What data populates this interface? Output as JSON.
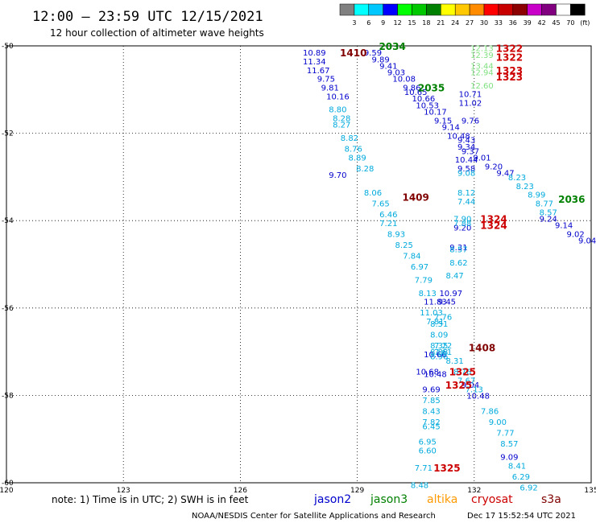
{
  "header": {
    "title": "12:00 — 23:59 UTC 12/15/2021",
    "subtitle": "12 hour collection of altimeter wave heights"
  },
  "legend": {
    "colors": [
      "#808080",
      "#00ffff",
      "#00c8ff",
      "#0000ff",
      "#00ff00",
      "#00c800",
      "#008000",
      "#ffff00",
      "#ffc800",
      "#ff8c00",
      "#ff0000",
      "#c80000",
      "#8b0000",
      "#c800c8",
      "#800080",
      "#ffffff",
      "#000000"
    ],
    "labels": [
      "3",
      "6",
      "9",
      "12",
      "15",
      "18",
      "21",
      "24",
      "27",
      "30",
      "33",
      "36",
      "39",
      "42",
      "45",
      "70",
      "(ft)"
    ]
  },
  "footer": {
    "note": "note:  1) Time is in UTC;  2) SWH is in feet",
    "credit": "NOAA/NESDIS Center for Satellite Applications and Research",
    "timestamp": "Dec 17 15:52:54 UTC 2021"
  },
  "satellites": [
    {
      "name": "jason2",
      "color": "#0000cc"
    },
    {
      "name": "jason3",
      "color": "#008000"
    },
    {
      "name": "altika",
      "color": "#ff9900"
    },
    {
      "name": "cryosat",
      "color": "#cc0000"
    },
    {
      "name": "s3a",
      "color": "#800000"
    }
  ],
  "chart_data": {
    "type": "scatter",
    "xlim": [
      120,
      135
    ],
    "ylim": [
      -60,
      -50
    ],
    "x_ticks": [
      {
        "v": 120,
        "label": "120"
      },
      {
        "v": 123,
        "label": "123"
      },
      {
        "v": 126,
        "label": "126"
      },
      {
        "v": 129,
        "label": "129"
      },
      {
        "v": 132,
        "label": "132"
      },
      {
        "v": 135,
        "label": "135"
      }
    ],
    "y_ticks": [
      {
        "v": -50,
        "label": "-50"
      },
      {
        "v": -52,
        "label": "-52"
      },
      {
        "v": -54,
        "label": "-54"
      },
      {
        "v": -56,
        "label": "-56"
      },
      {
        "v": -58,
        "label": "-58"
      },
      {
        "v": -60,
        "label": "-60"
      }
    ],
    "grid": true,
    "pass_labels": [
      {
        "x": 129.9,
        "y": -50.0,
        "text": "2034",
        "color": "#008000"
      },
      {
        "x": 128.9,
        "y": -50.15,
        "text": "1410",
        "color": "#800000"
      },
      {
        "x": 130.9,
        "y": -50.95,
        "text": "2035",
        "color": "#008000"
      },
      {
        "x": 130.5,
        "y": -53.45,
        "text": "1409",
        "color": "#800000"
      },
      {
        "x": 134.5,
        "y": -53.5,
        "text": "2036",
        "color": "#008000"
      },
      {
        "x": 132.9,
        "y": -50.05,
        "text": "1322",
        "color": "#cc0000"
      },
      {
        "x": 132.9,
        "y": -50.25,
        "text": "1322",
        "color": "#cc0000"
      },
      {
        "x": 132.9,
        "y": -50.55,
        "text": "1323",
        "color": "#cc0000"
      },
      {
        "x": 132.9,
        "y": -50.7,
        "text": "1323",
        "color": "#cc0000"
      },
      {
        "x": 132.5,
        "y": -53.95,
        "text": "1324",
        "color": "#cc0000"
      },
      {
        "x": 132.5,
        "y": -54.1,
        "text": "1324",
        "color": "#cc0000"
      },
      {
        "x": 132.2,
        "y": -56.9,
        "text": "1408",
        "color": "#800000"
      },
      {
        "x": 131.7,
        "y": -57.45,
        "text": "1325",
        "color": "#cc0000"
      },
      {
        "x": 131.6,
        "y": -57.75,
        "text": "1325",
        "color": "#cc0000"
      },
      {
        "x": 131.3,
        "y": -59.65,
        "text": "1325",
        "color": "#cc0000"
      }
    ],
    "series": [
      {
        "name": "jason2",
        "color": "#0000cc",
        "points": [
          {
            "x": 127.9,
            "y": -50.15,
            "v": "10.89"
          },
          {
            "x": 127.9,
            "y": -50.35,
            "v": "11.34"
          },
          {
            "x": 128.0,
            "y": -50.55,
            "v": "11.67"
          },
          {
            "x": 128.2,
            "y": -50.75,
            "v": "9.75"
          },
          {
            "x": 128.3,
            "y": -50.95,
            "v": "9.81"
          },
          {
            "x": 128.5,
            "y": -51.15,
            "v": "10.16"
          },
          {
            "x": 129.4,
            "y": -50.15,
            "v": "9.59"
          },
          {
            "x": 129.6,
            "y": -50.3,
            "v": "9.89"
          },
          {
            "x": 129.8,
            "y": -50.45,
            "v": "9.41"
          },
          {
            "x": 130.0,
            "y": -50.6,
            "v": "9.03"
          },
          {
            "x": 130.2,
            "y": -50.75,
            "v": "10.08"
          },
          {
            "x": 130.4,
            "y": -50.95,
            "v": "9.86"
          },
          {
            "x": 130.5,
            "y": -51.05,
            "v": "10.65"
          },
          {
            "x": 130.7,
            "y": -51.2,
            "v": "10.66"
          },
          {
            "x": 130.8,
            "y": -51.35,
            "v": "10.53"
          },
          {
            "x": 131.0,
            "y": -51.5,
            "v": "10.17"
          },
          {
            "x": 131.2,
            "y": -51.7,
            "v": "9.15"
          },
          {
            "x": 131.4,
            "y": -51.85,
            "v": "9.14"
          },
          {
            "x": 131.6,
            "y": -52.05,
            "v": "10.48"
          },
          {
            "x": 131.8,
            "y": -52.15,
            "v": "9.43"
          },
          {
            "x": 131.8,
            "y": -52.3,
            "v": "9.34"
          },
          {
            "x": 131.9,
            "y": -52.4,
            "v": "9.37"
          },
          {
            "x": 132.2,
            "y": -52.55,
            "v": "9.01"
          },
          {
            "x": 131.8,
            "y": -52.6,
            "v": "10.44"
          },
          {
            "x": 131.8,
            "y": -52.8,
            "v": "9.58"
          },
          {
            "x": 132.5,
            "y": -52.75,
            "v": "9.20"
          },
          {
            "x": 132.8,
            "y": -52.9,
            "v": "9.47"
          },
          {
            "x": 133.9,
            "y": -53.95,
            "v": "9.24"
          },
          {
            "x": 134.3,
            "y": -54.1,
            "v": "9.14"
          },
          {
            "x": 134.6,
            "y": -54.3,
            "v": "9.02"
          },
          {
            "x": 134.9,
            "y": -54.45,
            "v": "9.04"
          },
          {
            "x": 131.9,
            "y": -51.1,
            "v": "10.71"
          },
          {
            "x": 131.9,
            "y": -51.3,
            "v": "11.02"
          },
          {
            "x": 131.9,
            "y": -51.7,
            "v": "9.76"
          },
          {
            "x": 128.5,
            "y": -52.95,
            "v": "9.70"
          },
          {
            "x": 131.7,
            "y": -54.15,
            "v": "9.20"
          },
          {
            "x": 131.6,
            "y": -54.6,
            "v": "9.31"
          },
          {
            "x": 131.4,
            "y": -55.65,
            "v": "10.97"
          },
          {
            "x": 131.0,
            "y": -55.85,
            "v": "11.83"
          },
          {
            "x": 131.3,
            "y": -55.85,
            "v": "9.45"
          },
          {
            "x": 131.0,
            "y": -57.05,
            "v": "10.66"
          },
          {
            "x": 131.9,
            "y": -57.75,
            "v": "9.04"
          },
          {
            "x": 132.1,
            "y": -58.0,
            "v": "10.48"
          },
          {
            "x": 131.0,
            "y": -57.5,
            "v": "10.48"
          },
          {
            "x": 130.9,
            "y": -57.85,
            "v": "9.69"
          },
          {
            "x": 132.9,
            "y": -59.4,
            "v": "9.09"
          },
          {
            "x": 130.8,
            "y": -57.45,
            "v": "10.68"
          }
        ]
      },
      {
        "name": "jason3",
        "color": "#80e080",
        "points": [
          {
            "x": 132.2,
            "y": -50.05,
            "v": "12.13"
          },
          {
            "x": 132.2,
            "y": -50.2,
            "v": "12.39"
          },
          {
            "x": 132.2,
            "y": -50.45,
            "v": "13.44"
          },
          {
            "x": 132.2,
            "y": -50.6,
            "v": "12.94"
          },
          {
            "x": 132.2,
            "y": -50.9,
            "v": "12.60"
          }
        ]
      },
      {
        "name": "s3a",
        "color": "#00aadd",
        "points": [
          {
            "x": 128.5,
            "y": -51.45,
            "v": "8.80"
          },
          {
            "x": 128.6,
            "y": -51.65,
            "v": "8.28"
          },
          {
            "x": 128.6,
            "y": -51.8,
            "v": "8.27"
          },
          {
            "x": 128.8,
            "y": -52.1,
            "v": "8.82"
          },
          {
            "x": 128.9,
            "y": -52.35,
            "v": "8.76"
          },
          {
            "x": 129.0,
            "y": -52.55,
            "v": "8.89"
          },
          {
            "x": 129.2,
            "y": -52.8,
            "v": "8.28"
          },
          {
            "x": 129.4,
            "y": -53.35,
            "v": "8.06"
          },
          {
            "x": 129.6,
            "y": -53.6,
            "v": "7.65"
          },
          {
            "x": 129.8,
            "y": -53.85,
            "v": "6.46"
          },
          {
            "x": 129.8,
            "y": -54.05,
            "v": "7.21"
          },
          {
            "x": 130.0,
            "y": -54.3,
            "v": "8.93"
          },
          {
            "x": 130.2,
            "y": -54.55,
            "v": "8.25"
          },
          {
            "x": 130.4,
            "y": -54.8,
            "v": "7.84"
          },
          {
            "x": 130.6,
            "y": -55.05,
            "v": "6.97"
          },
          {
            "x": 130.7,
            "y": -55.35,
            "v": "7.79"
          },
          {
            "x": 130.8,
            "y": -55.65,
            "v": "8.13"
          },
          {
            "x": 130.9,
            "y": -56.1,
            "v": "11.03"
          },
          {
            "x": 131.0,
            "y": -56.3,
            "v": "7.81"
          },
          {
            "x": 131.2,
            "y": -56.2,
            "v": "7.76"
          },
          {
            "x": 131.1,
            "y": -56.35,
            "v": "8.51"
          },
          {
            "x": 131.1,
            "y": -56.6,
            "v": "8.09"
          },
          {
            "x": 131.1,
            "y": -56.85,
            "v": "8.35"
          },
          {
            "x": 131.2,
            "y": -56.85,
            "v": "7.22"
          },
          {
            "x": 131.1,
            "y": -57.0,
            "v": "8.88"
          },
          {
            "x": 131.2,
            "y": -57.0,
            "v": "7.61"
          },
          {
            "x": 131.1,
            "y": -57.1,
            "v": "8.96"
          },
          {
            "x": 131.5,
            "y": -57.2,
            "v": "8.31"
          },
          {
            "x": 131.7,
            "y": -57.45,
            "v": "8.76"
          },
          {
            "x": 131.8,
            "y": -57.65,
            "v": "7.67"
          },
          {
            "x": 132.0,
            "y": -57.85,
            "v": "7.13"
          },
          {
            "x": 130.9,
            "y": -58.1,
            "v": "7.85"
          },
          {
            "x": 131.8,
            "y": -53.35,
            "v": "8.12"
          },
          {
            "x": 131.8,
            "y": -53.55,
            "v": "7.44"
          },
          {
            "x": 131.7,
            "y": -53.95,
            "v": "7.90"
          },
          {
            "x": 131.7,
            "y": -54.05,
            "v": "7.88"
          },
          {
            "x": 131.6,
            "y": -54.65,
            "v": "8.57"
          },
          {
            "x": 131.6,
            "y": -54.95,
            "v": "8.62"
          },
          {
            "x": 131.5,
            "y": -55.25,
            "v": "8.47"
          },
          {
            "x": 133.1,
            "y": -53.0,
            "v": "8.23"
          },
          {
            "x": 133.3,
            "y": -53.2,
            "v": "8.23"
          },
          {
            "x": 133.6,
            "y": -53.4,
            "v": "8.99"
          },
          {
            "x": 133.8,
            "y": -53.6,
            "v": "8.77"
          },
          {
            "x": 133.9,
            "y": -53.8,
            "v": "8.57"
          },
          {
            "x": 131.8,
            "y": -52.9,
            "v": "9.08"
          },
          {
            "x": 132.4,
            "y": -58.35,
            "v": "7.86"
          },
          {
            "x": 132.6,
            "y": -58.6,
            "v": "9.00"
          },
          {
            "x": 132.8,
            "y": -58.85,
            "v": "7.77"
          },
          {
            "x": 132.9,
            "y": -59.1,
            "v": "8.57"
          },
          {
            "x": 133.1,
            "y": -59.6,
            "v": "8.41"
          },
          {
            "x": 133.2,
            "y": -59.85,
            "v": "6.29"
          },
          {
            "x": 133.4,
            "y": -60.1,
            "v": "6.92"
          },
          {
            "x": 130.9,
            "y": -58.35,
            "v": "8.43"
          },
          {
            "x": 130.9,
            "y": -58.6,
            "v": "7.82"
          },
          {
            "x": 130.9,
            "y": -58.7,
            "v": "6.45"
          },
          {
            "x": 130.8,
            "y": -59.05,
            "v": "6.95"
          },
          {
            "x": 130.8,
            "y": -59.25,
            "v": "6.60"
          },
          {
            "x": 130.7,
            "y": -59.65,
            "v": "7.71"
          },
          {
            "x": 130.6,
            "y": -60.05,
            "v": "8.48"
          }
        ]
      }
    ]
  }
}
